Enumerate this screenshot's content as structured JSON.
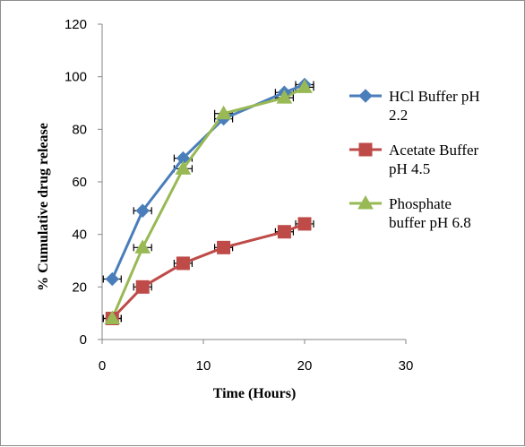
{
  "chart_data": {
    "type": "line",
    "xlabel": "Time (Hours)",
    "ylabel": "% Cumulative drug release",
    "xlim": [
      0,
      30
    ],
    "ylim": [
      0,
      120
    ],
    "xticks": [
      0,
      10,
      20,
      30
    ],
    "yticks": [
      0,
      20,
      40,
      60,
      80,
      100,
      120
    ],
    "grid": false,
    "legend_position": "right",
    "error_bars": "horizontal",
    "series": [
      {
        "name": "HCl Buffer pH 2.2",
        "name_lines": [
          "HCl Buffer pH",
          "2.2"
        ],
        "marker": "diamond",
        "color": "#4a7ebb",
        "x": [
          1,
          4,
          8,
          12,
          18,
          20
        ],
        "y": [
          23,
          49,
          69,
          84,
          94,
          97
        ]
      },
      {
        "name": "Acetate Buffer pH 4.5",
        "name_lines": [
          "Acetate Buffer",
          "pH 4.5"
        ],
        "marker": "square",
        "color": "#be4b48",
        "x": [
          1,
          4,
          8,
          12,
          18,
          20
        ],
        "y": [
          8,
          20,
          29,
          35,
          41,
          44
        ]
      },
      {
        "name": "Phosphate buffer pH 6.8",
        "name_lines": [
          "Phosphate",
          "buffer pH 6.8"
        ],
        "marker": "triangle",
        "color": "#98b954",
        "x": [
          1,
          4,
          8,
          12,
          18,
          20
        ],
        "y": [
          8,
          35,
          65,
          86,
          92,
          96
        ]
      }
    ]
  }
}
